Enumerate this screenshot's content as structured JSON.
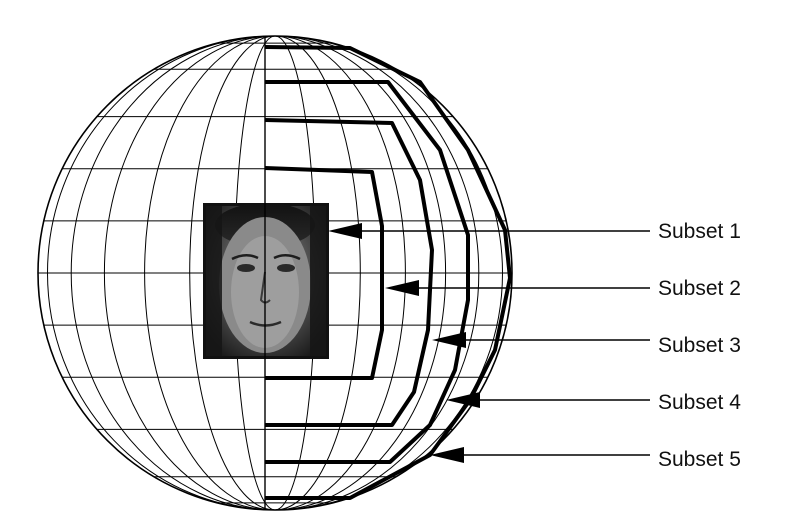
{
  "subsets": [
    {
      "label": "Subset 1",
      "arrow_tip": "top"
    },
    {
      "label": "Subset 2",
      "arrow_tip": "middle"
    },
    {
      "label": "Subset 3",
      "arrow_tip": "boundary"
    },
    {
      "label": "Subset 4",
      "arrow_tip": "boundary"
    },
    {
      "label": "Subset 5",
      "arrow_tip": "boundary"
    }
  ],
  "colors": {
    "background": "#ffffff",
    "grid_line": "#000000",
    "label": "#111111"
  },
  "face_image": {
    "icon": "face-photo",
    "style": "grayscale"
  }
}
